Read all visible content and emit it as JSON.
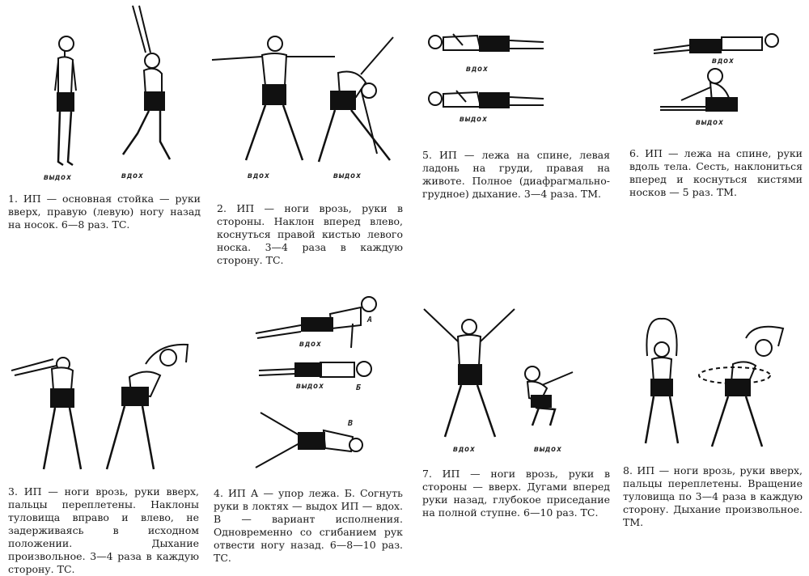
{
  "labels": {
    "exhale": "выдох",
    "inhale": "вдох",
    "a": "А",
    "b": "Б",
    "v": "В"
  },
  "exercises": [
    {
      "id": 1,
      "text": "1. ИП — основная стойка — руки вверх, правую (левую) ногу назад на носок. 6—8 раз. ТС."
    },
    {
      "id": 2,
      "text": "2. ИП — ноги врозь, руки в стороны. Наклон вперед влево, коснуться правой кистью левого носка. 3—4 раза в каждую сторону. ТС."
    },
    {
      "id": 3,
      "text": "3. ИП — ноги врозь, руки вверх, пальцы переплетены. Наклоны туловища вправо и влево, не задерживаясь в исходном положении. Дыхание произвольное. 3—4 раза в каждую сторону. ТС."
    },
    {
      "id": 4,
      "text": "4. ИП А — упор лежа. Б. Согнуть руки в локтях — выдох ИП — вдох. В — вариант исполнения. Одновременно со сгибанием рук отвести ногу назад. 6—8—10 раз. ТС."
    },
    {
      "id": 5,
      "text": "5. ИП — лежа на спине, левая ладонь на груди, правая на животе. Полное (диафрагмально-грудное) дыхание. 3—4 раза. ТМ."
    },
    {
      "id": 6,
      "text": "6. ИП — лежа на спине, руки вдоль тела. Сесть, наклониться вперед и коснуться кистями носков — 5 раз. ТМ."
    },
    {
      "id": 7,
      "text": "7. ИП — ноги врозь, руки в стороны — вверх. Дугами вперед руки назад, глубокое приседание на полной ступне. 6—10 раз. ТС."
    },
    {
      "id": 8,
      "text": "8. ИП — ноги врозь, руки вверх, пальцы переплетены. Вращение туловища по 3—4 раза в каждую сторону. Дыхание произвольное. ТМ."
    }
  ]
}
